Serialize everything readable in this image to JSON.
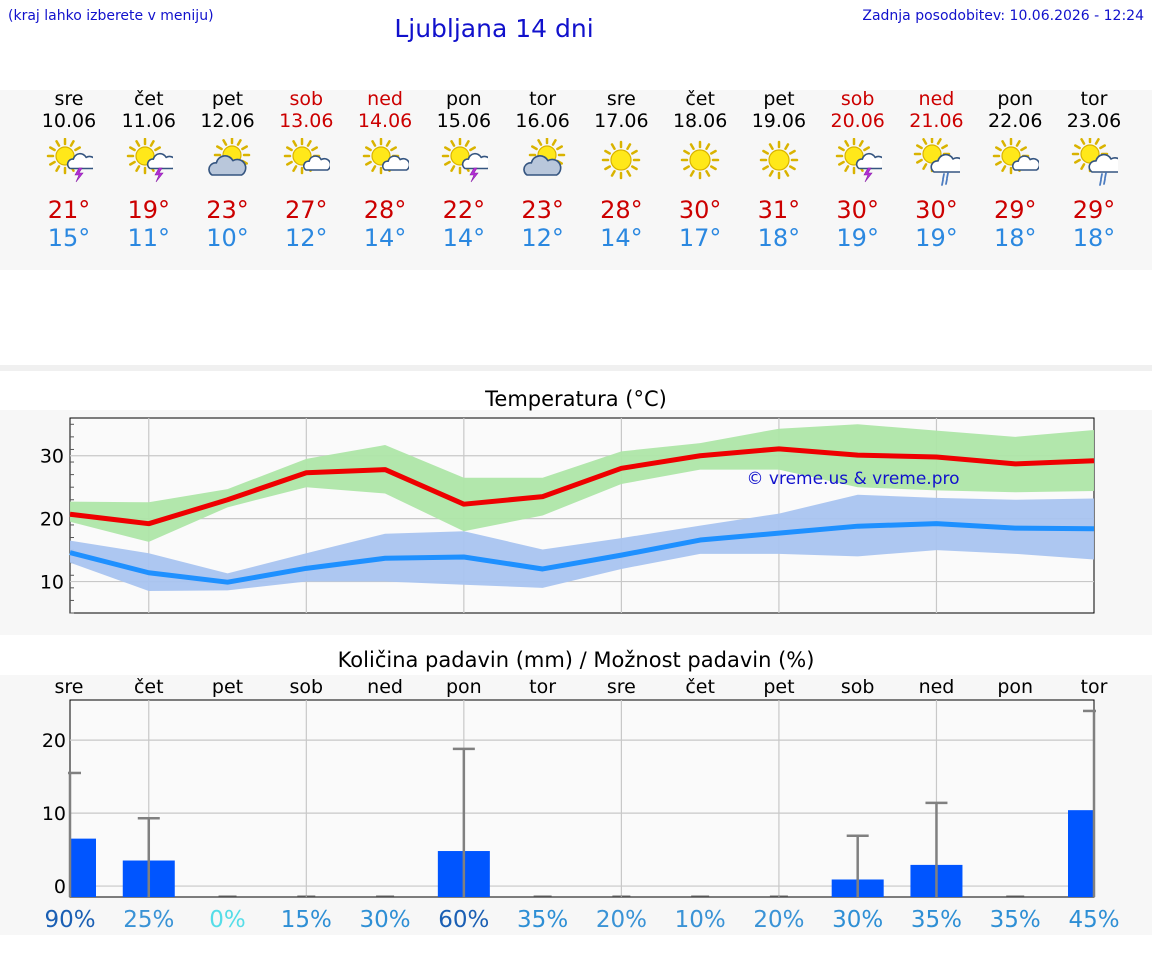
{
  "header": {
    "hint": "(kraj lahko izberete v meniju)",
    "title": "Ljubljana 14 dni",
    "updated": "Zadnja posodobitev: 10.06.2026 - 12:24"
  },
  "colors": {
    "title": "#1111cc",
    "weekend": "#cc0000",
    "tmax": "#cc0000",
    "tmin": "#2b88e0",
    "max_line": "#ee0000",
    "max_band": "#aee6a8",
    "min_line": "#1e90ff",
    "min_band": "#a9c4f0",
    "precip_bar": "#0055ff"
  },
  "days": [
    {
      "name": "sre",
      "date": "10.06",
      "weekend": false,
      "icon": "sun-cloud-lightning-icon",
      "tmax": "21°",
      "tmin": "15°"
    },
    {
      "name": "čet",
      "date": "11.06",
      "weekend": false,
      "icon": "sun-cloud-lightning-icon",
      "tmax": "19°",
      "tmin": "11°"
    },
    {
      "name": "pet",
      "date": "12.06",
      "weekend": false,
      "icon": "sun-dark-cloud-icon",
      "tmax": "23°",
      "tmin": "10°"
    },
    {
      "name": "sob",
      "date": "13.06",
      "weekend": true,
      "icon": "sun-small-cloud-icon",
      "tmax": "27°",
      "tmin": "12°"
    },
    {
      "name": "ned",
      "date": "14.06",
      "weekend": true,
      "icon": "sun-small-cloud-icon",
      "tmax": "28°",
      "tmin": "14°"
    },
    {
      "name": "pon",
      "date": "15.06",
      "weekend": false,
      "icon": "sun-cloud-lightning-icon",
      "tmax": "22°",
      "tmin": "14°"
    },
    {
      "name": "tor",
      "date": "16.06",
      "weekend": false,
      "icon": "sun-dark-cloud-icon",
      "tmax": "23°",
      "tmin": "12°"
    },
    {
      "name": "sre",
      "date": "17.06",
      "weekend": false,
      "icon": "sun-icon",
      "tmax": "28°",
      "tmin": "14°"
    },
    {
      "name": "čet",
      "date": "18.06",
      "weekend": false,
      "icon": "sun-icon",
      "tmax": "30°",
      "tmin": "17°"
    },
    {
      "name": "pet",
      "date": "19.06",
      "weekend": false,
      "icon": "sun-icon",
      "tmax": "31°",
      "tmin": "18°"
    },
    {
      "name": "sob",
      "date": "20.06",
      "weekend": true,
      "icon": "sun-cloud-lightning-icon",
      "tmax": "30°",
      "tmin": "19°"
    },
    {
      "name": "ned",
      "date": "21.06",
      "weekend": true,
      "icon": "sun-cloud-rain-icon",
      "tmax": "30°",
      "tmin": "19°"
    },
    {
      "name": "pon",
      "date": "22.06",
      "weekend": false,
      "icon": "sun-small-cloud-icon",
      "tmax": "29°",
      "tmin": "18°"
    },
    {
      "name": "tor",
      "date": "23.06",
      "weekend": false,
      "icon": "sun-cloud-rain-icon",
      "tmax": "29°",
      "tmin": "18°"
    }
  ],
  "chart_data": [
    {
      "type": "line",
      "title": "Temperatura (°C)",
      "watermark": "© vreme.us & vreme.pro",
      "ylim": [
        5,
        36
      ],
      "yticks": [
        10,
        20,
        30
      ],
      "grid": true,
      "series": [
        {
          "values": [
            20.7,
            19.2,
            23.0,
            27.3,
            27.8,
            22.3,
            23.5,
            28.0,
            30.0,
            31.1,
            30.1,
            29.8,
            28.7,
            29.2
          ],
          "band_low": [
            19.5,
            16.3,
            21.8,
            25.0,
            24.0,
            18.0,
            20.5,
            25.5,
            27.8,
            27.8,
            25.0,
            24.5,
            24.2,
            24.4
          ],
          "band_high": [
            22.7,
            22.6,
            24.7,
            29.5,
            31.7,
            26.5,
            26.5,
            30.7,
            32.0,
            34.3,
            35.0,
            34.0,
            33.0,
            34.1
          ]
        },
        {
          "values": [
            14.6,
            11.4,
            9.9,
            12.1,
            13.7,
            13.9,
            12.0,
            14.2,
            16.6,
            17.7,
            18.8,
            19.2,
            18.5,
            18.4
          ],
          "band_low": [
            13.0,
            8.5,
            8.6,
            10.0,
            10.0,
            9.5,
            9.0,
            12.0,
            14.4,
            14.4,
            14.0,
            15.0,
            14.4,
            13.5
          ],
          "band_high": [
            16.5,
            14.5,
            11.3,
            14.5,
            17.6,
            18.0,
            15.1,
            16.9,
            18.9,
            20.8,
            23.8,
            23.3,
            23.0,
            23.2
          ]
        }
      ]
    },
    {
      "type": "bar",
      "title": "Količina padavin (mm) / Možnost padavin (%)",
      "categories": [
        "sre",
        "čet",
        "pet",
        "sob",
        "ned",
        "pon",
        "tor",
        "sre",
        "čet",
        "pet",
        "sob",
        "ned",
        "pon",
        "tor"
      ],
      "ylim": [
        -1.5,
        25.5
      ],
      "yticks": [
        0,
        10,
        20
      ],
      "values": [
        6.5,
        3.5,
        0,
        0,
        0,
        4.8,
        0,
        0,
        0,
        0,
        0.9,
        2.9,
        0,
        10.4
      ],
      "max_values": [
        15.5,
        9.3,
        0,
        0,
        0,
        18.8,
        0,
        0,
        0,
        0,
        6.9,
        11.4,
        0,
        24.0
      ],
      "probabilities": [
        "90%",
        "25%",
        "0%",
        "15%",
        "30%",
        "60%",
        "35%",
        "20%",
        "10%",
        "20%",
        "30%",
        "35%",
        "35%",
        "45%"
      ],
      "probability_colors": [
        "#1a5fb4",
        "#3a93d6",
        "#55dde8",
        "#2e8fd5",
        "#2e8fd5",
        "#1a5fb4",
        "#2e8fd5",
        "#3a93d6",
        "#3a93d6",
        "#3a93d6",
        "#2e8fd5",
        "#2e8fd5",
        "#2e8fd5",
        "#2e8fd5"
      ]
    }
  ]
}
